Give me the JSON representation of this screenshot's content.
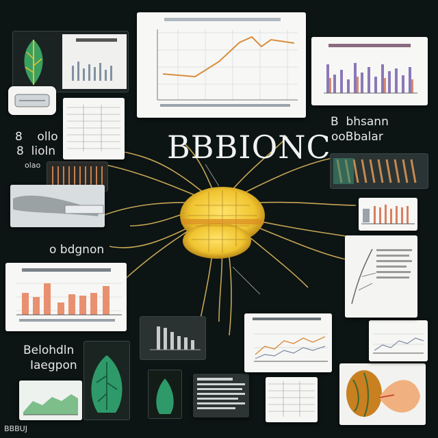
{
  "title": "BBBIONC",
  "labels": {
    "left_top_a": "8    ollo",
    "left_top_b": "8  lioln",
    "left_top_c": "olao",
    "left_mid": "o bdgnon",
    "left_bottom_a": "Belohdln",
    "left_bottom_b": "Iaegpon",
    "right_top_a": "B  bhsann",
    "right_top_b": "ooBbalar",
    "bottom_left_corner": "BBBUJ"
  },
  "colors": {
    "background": "#0c1414",
    "accent": "#f0c430",
    "fiber": "#e8c060",
    "bar": "#e89070",
    "line": "#d98c3a"
  }
}
